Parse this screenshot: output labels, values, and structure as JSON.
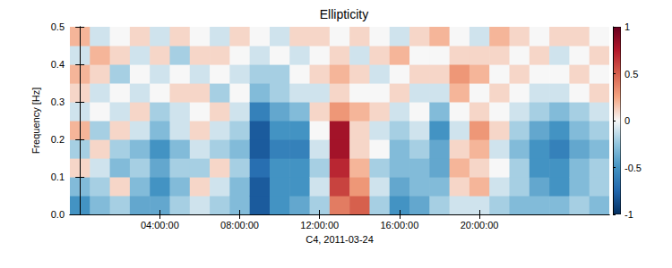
{
  "chart_data": {
    "type": "heatmap",
    "title": "Ellipticity",
    "xlabel": "C4, 2011-03-24",
    "ylabel": "Frequency [Hz]",
    "xlim": [
      -0.5,
      26.5
    ],
    "xticks": [
      {
        "value": 4,
        "label": "04:00:00"
      },
      {
        "value": 8,
        "label": "08:00:00"
      },
      {
        "value": 12,
        "label": "12:00:00"
      },
      {
        "value": 16,
        "label": "16:00:00"
      },
      {
        "value": 20,
        "label": "20:00:00"
      }
    ],
    "ylim": [
      0,
      0.5
    ],
    "yticks": [
      {
        "value": 0,
        "label": "0.0"
      },
      0.1,
      0.2,
      0.3,
      0.4,
      0.5
    ],
    "x": [
      0,
      1,
      2,
      3,
      4,
      5,
      6,
      7,
      8,
      9,
      10,
      11,
      12,
      13,
      14,
      15,
      16,
      17,
      18,
      19,
      20,
      21,
      22,
      23,
      24,
      25,
      26
    ],
    "y": [
      0.025,
      0.075,
      0.125,
      0.175,
      0.225,
      0.275,
      0.325,
      0.375,
      0.425,
      0.475
    ],
    "values": [
      [
        -0.5,
        -0.3,
        0.1,
        -0.2,
        0.2,
        -0.1,
        0.1,
        0.2,
        -0.1,
        0.2
      ],
      [
        -0.3,
        -0.2,
        -0.1,
        0.1,
        -0.2,
        0.0,
        -0.1,
        0.1,
        0.2,
        -0.1
      ],
      [
        -0.2,
        0.1,
        -0.3,
        -0.2,
        0.1,
        -0.1,
        0.0,
        -0.2,
        0.1,
        0.0
      ],
      [
        -0.4,
        -0.3,
        -0.2,
        -0.3,
        -0.1,
        0.1,
        -0.1,
        0.0,
        -0.1,
        0.1
      ],
      [
        -0.4,
        -0.5,
        -0.4,
        -0.5,
        -0.3,
        -0.2,
        0.0,
        -0.1,
        0.1,
        -0.1
      ],
      [
        -0.2,
        -0.3,
        -0.2,
        -0.3,
        -0.1,
        -0.1,
        0.1,
        0.0,
        -0.2,
        0.1
      ],
      [
        -0.1,
        0.1,
        -0.2,
        -0.1,
        0.1,
        0.0,
        0.1,
        -0.1,
        0.1,
        0.0
      ],
      [
        -0.2,
        -0.1,
        0.1,
        -0.2,
        -0.1,
        0.1,
        -0.2,
        0.0,
        0.1,
        -0.1
      ],
      [
        -0.3,
        -0.3,
        -0.2,
        -0.3,
        -0.2,
        -0.1,
        0.0,
        -0.1,
        0.0,
        0.1
      ],
      [
        -0.8,
        -0.8,
        -0.7,
        -0.8,
        -0.8,
        -0.6,
        -0.3,
        -0.2,
        -0.1,
        0.0
      ],
      [
        -0.5,
        -0.5,
        -0.5,
        -0.6,
        -0.5,
        -0.4,
        -0.2,
        -0.2,
        0.0,
        -0.1
      ],
      [
        -0.4,
        -0.5,
        -0.5,
        -0.6,
        -0.5,
        -0.3,
        -0.1,
        0.0,
        -0.1,
        0.1
      ],
      [
        -0.2,
        -0.1,
        -0.2,
        -0.1,
        0.0,
        0.1,
        -0.1,
        0.1,
        0.0,
        0.1
      ],
      [
        0.4,
        0.6,
        0.7,
        0.8,
        0.8,
        0.3,
        0.1,
        0.2,
        0.1,
        0.0
      ],
      [
        0.5,
        0.3,
        0.2,
        0.1,
        0.1,
        0.2,
        0.0,
        0.1,
        -0.1,
        0.1
      ],
      [
        -0.2,
        -0.1,
        -0.2,
        0.0,
        -0.1,
        0.1,
        0.0,
        -0.1,
        0.1,
        0.0
      ],
      [
        -0.5,
        -0.4,
        -0.3,
        -0.3,
        -0.2,
        -0.1,
        0.1,
        0.0,
        0.2,
        -0.1
      ],
      [
        -0.4,
        -0.3,
        -0.3,
        -0.2,
        -0.1,
        0.0,
        -0.1,
        0.1,
        0.0,
        0.1
      ],
      [
        -0.2,
        -0.3,
        -0.4,
        -0.4,
        -0.5,
        -0.3,
        -0.1,
        0.1,
        0.0,
        0.2
      ],
      [
        -0.1,
        0.1,
        0.2,
        0.1,
        -0.1,
        0.0,
        0.2,
        0.3,
        0.1,
        0.0
      ],
      [
        -0.1,
        0.2,
        0.1,
        0.2,
        0.3,
        0.1,
        0.0,
        0.2,
        0.1,
        -0.1
      ],
      [
        -0.2,
        -0.1,
        0.0,
        -0.1,
        0.1,
        0.0,
        0.1,
        0.0,
        0.1,
        0.2
      ],
      [
        -0.3,
        -0.2,
        -0.2,
        -0.3,
        -0.2,
        -0.1,
        0.0,
        0.1,
        0.0,
        0.1
      ],
      [
        -0.3,
        -0.4,
        -0.5,
        -0.5,
        -0.4,
        -0.2,
        -0.1,
        0.0,
        0.1,
        0.0
      ],
      [
        -0.3,
        -0.5,
        -0.5,
        -0.6,
        -0.5,
        -0.3,
        -0.1,
        0.0,
        -0.1,
        0.1
      ],
      [
        -0.2,
        -0.3,
        -0.3,
        -0.4,
        -0.3,
        -0.2,
        0.0,
        0.1,
        0.0,
        0.1
      ],
      [
        -0.3,
        -0.2,
        -0.2,
        -0.3,
        -0.2,
        -0.1,
        0.1,
        0.0,
        0.1,
        0.0
      ]
    ],
    "colorbar": {
      "range": [
        -1,
        1
      ],
      "ticks": [
        -1,
        -0.5,
        0,
        0.5,
        1
      ]
    }
  }
}
